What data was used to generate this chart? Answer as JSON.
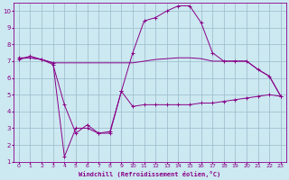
{
  "bg_color": "#cce8f0",
  "line_color": "#880088",
  "grid_color": "#99bbcc",
  "xlabel": "Windchill (Refroidissement éolien,°C)",
  "xlim": [
    -0.5,
    23.5
  ],
  "ylim": [
    1,
    10.5
  ],
  "xticks": [
    0,
    1,
    2,
    3,
    4,
    5,
    6,
    7,
    8,
    9,
    10,
    11,
    12,
    13,
    14,
    15,
    16,
    17,
    18,
    19,
    20,
    21,
    22,
    23
  ],
  "yticks": [
    1,
    2,
    3,
    4,
    5,
    6,
    7,
    8,
    9,
    10
  ],
  "line1_x": [
    0,
    1,
    2,
    3,
    4,
    5,
    6,
    7,
    8,
    9,
    10,
    11,
    12,
    13,
    14,
    15,
    16,
    17,
    18,
    19,
    20,
    21,
    22,
    23
  ],
  "line1_y": [
    7.1,
    7.3,
    7.1,
    6.8,
    4.4,
    2.7,
    3.2,
    2.7,
    2.7,
    5.2,
    4.3,
    4.4,
    4.4,
    4.4,
    4.4,
    4.4,
    4.5,
    4.5,
    4.6,
    4.7,
    4.8,
    4.9,
    5.0,
    4.9
  ],
  "line2_x": [
    0,
    1,
    2,
    3,
    4,
    5,
    6,
    7,
    8,
    9,
    10,
    11,
    12,
    13,
    14,
    15,
    16,
    17,
    18,
    19,
    20,
    21,
    22,
    23
  ],
  "line2_y": [
    7.2,
    7.2,
    7.1,
    6.9,
    1.3,
    3.0,
    3.0,
    2.7,
    2.8,
    5.2,
    7.5,
    9.4,
    9.6,
    10.0,
    10.3,
    10.3,
    9.3,
    7.5,
    7.0,
    7.0,
    7.0,
    6.5,
    6.1,
    4.9
  ],
  "line3_x": [
    0,
    1,
    2,
    3,
    4,
    5,
    6,
    7,
    8,
    9,
    10,
    11,
    12,
    13,
    14,
    15,
    16,
    17,
    18,
    19,
    20,
    21,
    22,
    23
  ],
  "line3_y": [
    7.15,
    7.2,
    7.1,
    6.9,
    6.9,
    6.9,
    6.9,
    6.9,
    6.9,
    6.9,
    6.9,
    7.0,
    7.1,
    7.15,
    7.2,
    7.2,
    7.15,
    7.0,
    7.0,
    7.0,
    7.0,
    6.5,
    6.1,
    4.9
  ]
}
